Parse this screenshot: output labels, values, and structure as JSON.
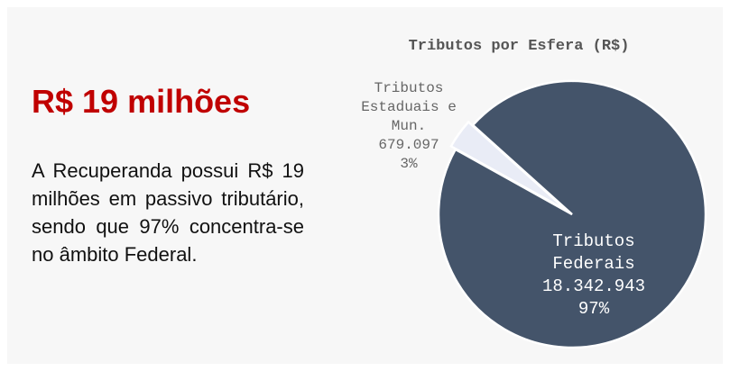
{
  "headline": "R$ 19 milhões",
  "paragraph": "A Recuperanda possui R$ 19 milhões em passivo tributário, sendo que 97% concentra-se no âmbito Federal.",
  "chart_data": {
    "type": "pie",
    "title": "Tributos por Esfera (R$)",
    "categories": [
      "Tributos Federais",
      "Tributos Estaduais e Mun."
    ],
    "values": [
      18342943,
      679097
    ],
    "value_labels": [
      "18.342.943",
      "679.097"
    ],
    "percent_labels": [
      "97%",
      "3%"
    ],
    "colors": [
      "#44546a",
      "#e9ecf6"
    ]
  }
}
